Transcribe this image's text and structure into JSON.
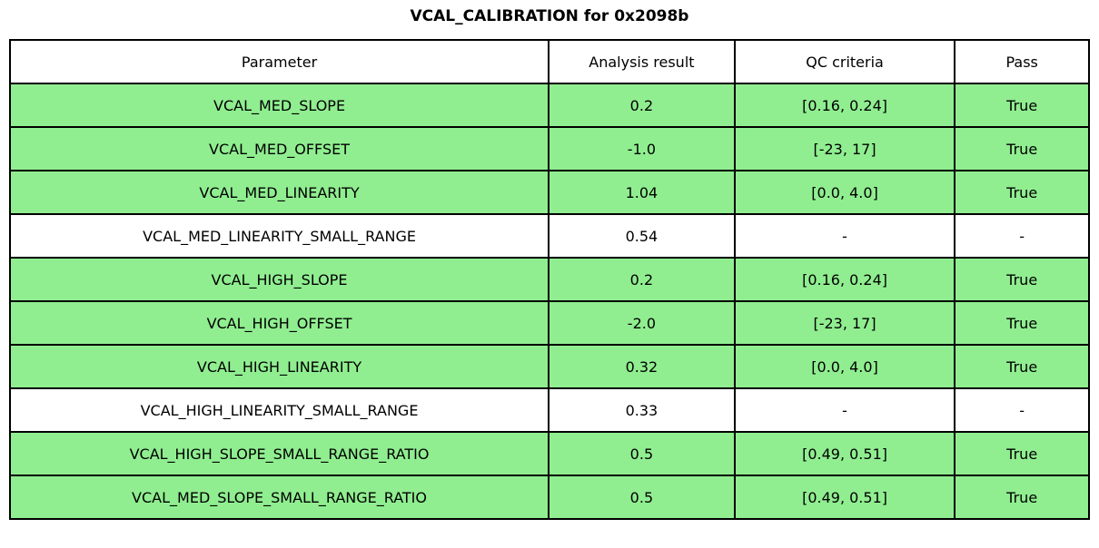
{
  "title": "VCAL_CALIBRATION for 0x2098b",
  "colors": {
    "pass_green": "#90ee90",
    "border": "#000000",
    "background": "#ffffff"
  },
  "table": {
    "headers": [
      "Parameter",
      "Analysis result",
      "QC criteria",
      "Pass"
    ],
    "rows": [
      {
        "parameter": "VCAL_MED_SLOPE",
        "result": "0.2",
        "criteria": "[0.16, 0.24]",
        "pass": "True",
        "highlight": true
      },
      {
        "parameter": "VCAL_MED_OFFSET",
        "result": "-1.0",
        "criteria": "[-23, 17]",
        "pass": "True",
        "highlight": true
      },
      {
        "parameter": "VCAL_MED_LINEARITY",
        "result": "1.04",
        "criteria": "[0.0, 4.0]",
        "pass": "True",
        "highlight": true
      },
      {
        "parameter": "VCAL_MED_LINEARITY_SMALL_RANGE",
        "result": "0.54",
        "criteria": "-",
        "pass": "-",
        "highlight": false
      },
      {
        "parameter": "VCAL_HIGH_SLOPE",
        "result": "0.2",
        "criteria": "[0.16, 0.24]",
        "pass": "True",
        "highlight": true
      },
      {
        "parameter": "VCAL_HIGH_OFFSET",
        "result": "-2.0",
        "criteria": "[-23, 17]",
        "pass": "True",
        "highlight": true
      },
      {
        "parameter": "VCAL_HIGH_LINEARITY",
        "result": "0.32",
        "criteria": "[0.0, 4.0]",
        "pass": "True",
        "highlight": true
      },
      {
        "parameter": "VCAL_HIGH_LINEARITY_SMALL_RANGE",
        "result": "0.33",
        "criteria": "-",
        "pass": "-",
        "highlight": false
      },
      {
        "parameter": "VCAL_HIGH_SLOPE_SMALL_RANGE_RATIO",
        "result": "0.5",
        "criteria": "[0.49, 0.51]",
        "pass": "True",
        "highlight": true
      },
      {
        "parameter": "VCAL_MED_SLOPE_SMALL_RANGE_RATIO",
        "result": "0.5",
        "criteria": "[0.49, 0.51]",
        "pass": "True",
        "highlight": true
      }
    ]
  }
}
